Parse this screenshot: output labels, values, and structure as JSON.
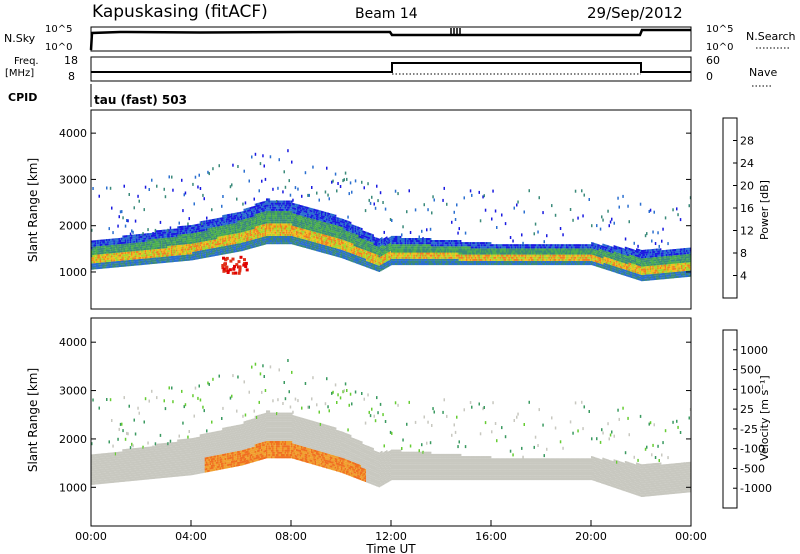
{
  "header": {
    "station": "Kapuskasing (fitACF)",
    "beam": "Beam 14",
    "date": "29/Sep/2012"
  },
  "top_panels": {
    "nsky_label": "N.Sky",
    "nsky_ticks": [
      "10^5",
      "10^0"
    ],
    "nsearch_label": "N.Search",
    "nsearch_ticks": [
      "10^5",
      "10^0"
    ],
    "freq_label": "Freq.",
    "freq_unit": "[MHz]",
    "freq_ticks": [
      "18",
      "8"
    ],
    "nave_label": "Nave",
    "nave_ticks": [
      "60",
      "0"
    ],
    "cpid_label": "CPID",
    "cpid_text": "tau (fast) 503"
  },
  "chart_data": [
    {
      "type": "line",
      "panel": "noise",
      "series": [
        {
          "name": "N.Sky",
          "x": [
            0,
            0.3,
            12,
            22,
            24
          ],
          "y": [
            4.6,
            4.8,
            4.3,
            4.8,
            4.8
          ]
        },
        {
          "name": "N.Search",
          "x": [
            14.4,
            14.8
          ],
          "y": [
            5,
            5
          ]
        }
      ],
      "xlim": [
        0,
        24
      ]
    },
    {
      "type": "line",
      "panel": "frequency",
      "series": [
        {
          "name": "Freq.",
          "x": [
            0,
            12,
            12,
            22,
            22,
            24
          ],
          "y": [
            10,
            10,
            13,
            13,
            10,
            10
          ]
        },
        {
          "name": "Nave",
          "x": [
            12,
            22
          ],
          "y": [
            10,
            10
          ]
        }
      ],
      "ylim": [
        8,
        18
      ],
      "xlim": [
        0,
        24
      ]
    },
    {
      "type": "heatmap",
      "panel": "power",
      "ylabel": "Slant Range [km]",
      "xlabel": "",
      "ylim": [
        200,
        4500
      ],
      "xlim": [
        0,
        24
      ],
      "yticks": [
        "1000",
        "2000",
        "3000",
        "4000"
      ],
      "colorbar": {
        "label": "Power [dB]",
        "ticks": [
          "28",
          "24",
          "20",
          "16",
          "12",
          "8",
          "4"
        ],
        "colors": [
          "#1a1ae0",
          "#2b6fd0",
          "#3a8a7a",
          "#4caf50",
          "#a8d82e",
          "#f0c020",
          "#f08020",
          "#e03018",
          "#e00000"
        ]
      },
      "backscatter_band": {
        "x": [
          0,
          2,
          4,
          6,
          7,
          8,
          10,
          11.5,
          12,
          16,
          20,
          22,
          24
        ],
        "lower_km": [
          1050,
          1150,
          1250,
          1450,
          1600,
          1600,
          1300,
          1000,
          1150,
          1150,
          1150,
          800,
          900
        ],
        "upper_km": [
          1650,
          1800,
          2000,
          2300,
          2550,
          2500,
          2150,
          1700,
          1750,
          1600,
          1600,
          1450,
          1500
        ]
      }
    },
    {
      "type": "heatmap",
      "panel": "velocity",
      "ylabel": "Slant Range [km]",
      "xlabel": "Time UT",
      "ylim": [
        200,
        4500
      ],
      "xlim": [
        0,
        24
      ],
      "yticks": [
        "1000",
        "2000",
        "3000",
        "4000"
      ],
      "xticks": [
        "00:00",
        "04:00",
        "08:00",
        "12:00",
        "16:00",
        "20:00",
        "00:00"
      ],
      "colorbar": {
        "label": "Velocity [m s⁻¹]",
        "ticks": [
          "1000",
          "500",
          "100",
          "25",
          "-25",
          "-100",
          "-500",
          "-1000"
        ],
        "colors": [
          "#2040c0",
          "#3a7ab0",
          "#3a9a60",
          "#66cc33",
          "#c8c8c0",
          "#f0a030",
          "#f07020",
          "#e83018",
          "#e00000"
        ]
      }
    }
  ]
}
